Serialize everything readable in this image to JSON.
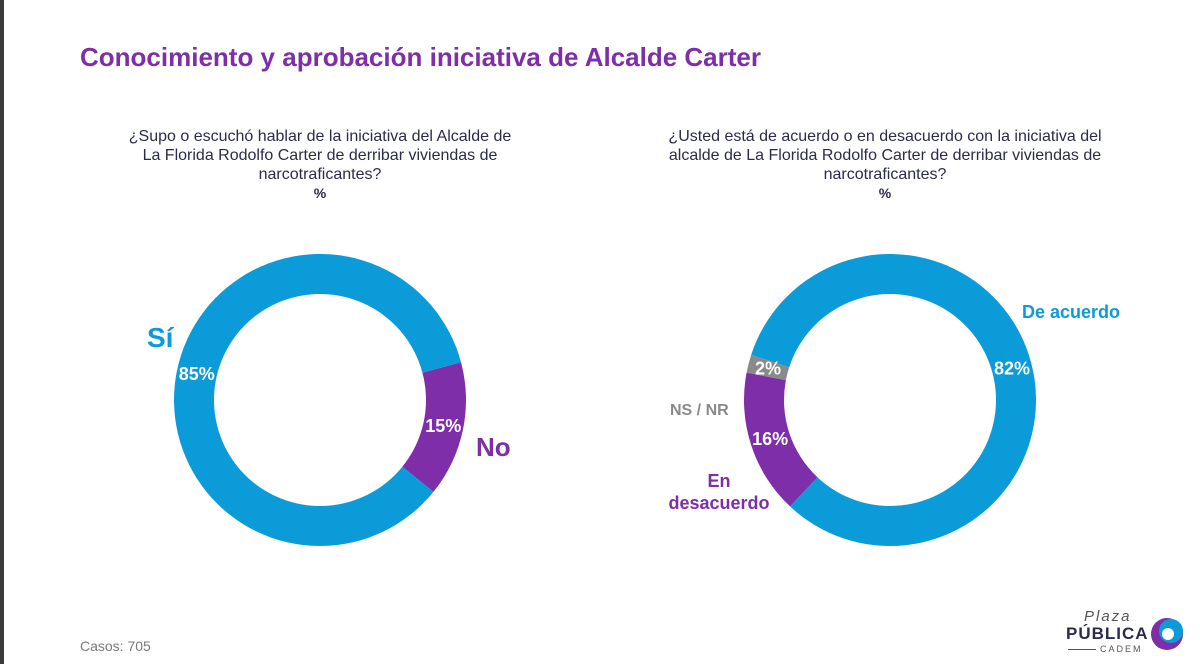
{
  "title": "Conocimiento y aprobación iniciativa de Alcalde Carter",
  "colors": {
    "blue": "#0a9bd8",
    "purple": "#7d2ea8",
    "gray": "#8a8a8a"
  },
  "chart_data": [
    {
      "type": "pie",
      "subtype": "donut",
      "question": "¿Supo o escuchó hablar de la iniciativa del Alcalde de La Florida Rodolfo Carter de derribar viviendas de narcotraficantes?",
      "unit": "%",
      "slices": [
        {
          "label": "Sí",
          "value": 85,
          "value_label": "85%",
          "color": "#0a9bd8"
        },
        {
          "label": "No",
          "value": 15,
          "value_label": "15%",
          "color": "#7d2ea8"
        }
      ]
    },
    {
      "type": "pie",
      "subtype": "donut",
      "question": "¿Usted está de acuerdo o en desacuerdo con la iniciativa del alcalde de La Florida Rodolfo Carter de derribar viviendas de narcotraficantes?",
      "unit": "%",
      "slices": [
        {
          "label": "De acuerdo",
          "value": 82,
          "value_label": "82%",
          "color": "#0a9bd8"
        },
        {
          "label": "En desacuerdo",
          "value": 16,
          "value_label": "16%",
          "color": "#7d2ea8"
        },
        {
          "label": "NS / NR",
          "value": 2,
          "value_label": "2%",
          "color": "#8a8a8a"
        }
      ]
    }
  ],
  "footer": {
    "casos": "Casos: 705"
  },
  "logo": {
    "top": "Plaza",
    "middle": "PÚBLICA",
    "bottom": "CADEM"
  }
}
